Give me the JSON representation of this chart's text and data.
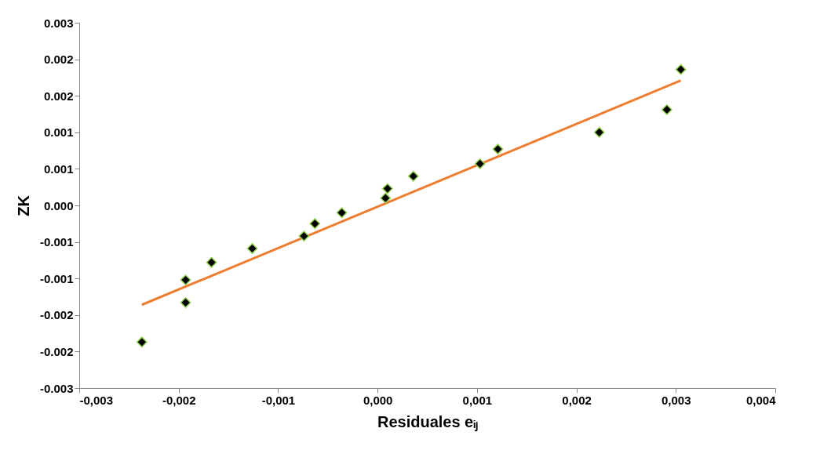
{
  "chart_data": {
    "type": "scatter",
    "xlabel": "Residuales eᵢⱼ",
    "ylabel": "ZK",
    "xlim": [
      -0.003,
      0.004
    ],
    "xticks": [
      {
        "value": -0.003,
        "label": "-0,003"
      },
      {
        "value": -0.002,
        "label": "-0,002"
      },
      {
        "value": -0.001,
        "label": "-0,001"
      },
      {
        "value": 0,
        "label": "0,000"
      },
      {
        "value": 0.001,
        "label": "0,001"
      },
      {
        "value": 0.002,
        "label": "0,002"
      },
      {
        "value": 0.003,
        "label": "0,003"
      },
      {
        "value": 0.004,
        "label": "0,004"
      }
    ],
    "ylim": [
      -0.0025,
      0.0025
    ],
    "yticks": [
      {
        "value": -0.0025,
        "label": "-0.003"
      },
      {
        "value": -0.002,
        "label": "-0.002"
      },
      {
        "value": -0.0015,
        "label": "-0.002"
      },
      {
        "value": -0.001,
        "label": "-0.001"
      },
      {
        "value": -0.0005,
        "label": "-0.001"
      },
      {
        "value": 0,
        "label": "0.000"
      },
      {
        "value": 0.0005,
        "label": "0.001"
      },
      {
        "value": 0.001,
        "label": "0.001"
      },
      {
        "value": 0.0015,
        "label": "0.002"
      },
      {
        "value": 0.002,
        "label": "0.002"
      },
      {
        "value": 0.0025,
        "label": "0.003"
      }
    ],
    "grid": false,
    "series": [
      {
        "type": "scatter",
        "color": "#000000",
        "marker": "diamond",
        "x": [
          -0.00237,
          -0.00193,
          -0.00193,
          -0.00167,
          -0.00126,
          -0.00074,
          -0.00063,
          -0.00036,
          8e-05,
          0.0001,
          0.00036,
          0.00103,
          0.00121,
          0.00223,
          0.00291,
          0.00305
        ],
        "values": [
          -0.00187,
          -0.00102,
          -0.00133,
          -0.00078,
          -0.00059,
          -0.00042,
          -0.00025,
          -0.0001,
          0.0001,
          0.00023,
          0.0004,
          0.00057,
          0.00077,
          0.001,
          0.00131,
          0.00186
        ]
      },
      {
        "type": "line",
        "color": "#ed7d31",
        "line_style": "solid",
        "x": [
          -0.00237,
          0.00305
        ],
        "values": [
          -0.00136,
          0.00171
        ]
      }
    ]
  }
}
